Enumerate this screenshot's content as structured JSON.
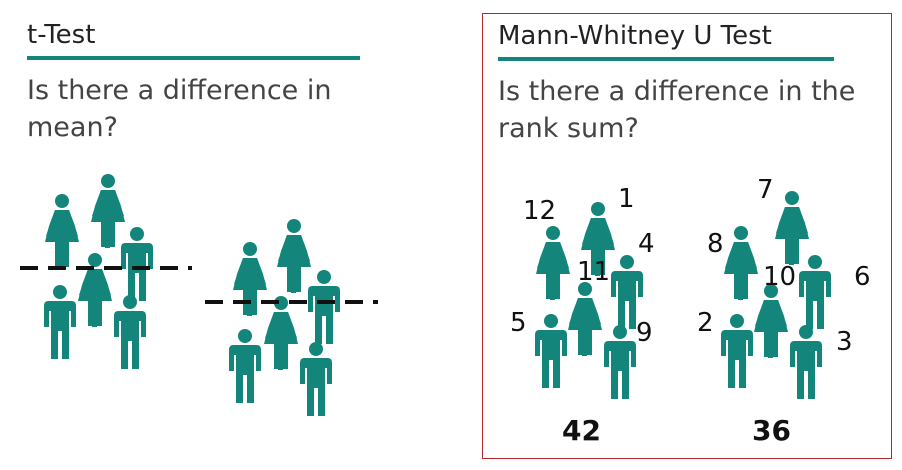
{
  "left_panel": {
    "title": "t-Test",
    "question": "Is there a difference in mean?"
  },
  "right_panel": {
    "title": "Mann-Whitney U Test",
    "question": "Is there a difference in the rank sum?",
    "group_a": {
      "ranks": [
        "12",
        "1",
        "4",
        "11",
        "5",
        "9"
      ],
      "rank_sum": "42"
    },
    "group_b": {
      "ranks": [
        "7",
        "8",
        "10",
        "6",
        "2",
        "3"
      ],
      "rank_sum": "36"
    }
  },
  "colors": {
    "person": "#14857a",
    "accent_rule": "#14857a",
    "frame": "#b3262d",
    "mean_line": "#111111"
  },
  "icons": [
    "person-female-icon",
    "person-male-icon"
  ]
}
